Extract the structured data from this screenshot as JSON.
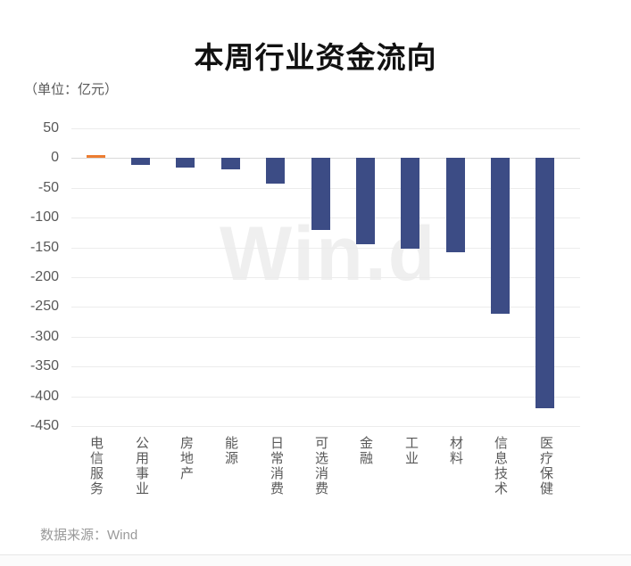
{
  "page": {
    "title": "本周行业资金流向",
    "subtitle": "（单位：亿元）",
    "source": "数据来源：Wind",
    "watermark": "Win.d"
  },
  "colors": {
    "positive_bar": "#ED7D31",
    "negative_bar": "#3C4C85",
    "gridline": "#ECECEC",
    "zero_line": "#D9D9D9",
    "axis_text": "#595959",
    "source_text": "#9A9A9A",
    "watermark": "#EFEFEF"
  },
  "chart_data": {
    "type": "bar",
    "title": "本周行业资金流向",
    "unit": "亿元",
    "categories": [
      "电信服务",
      "公用事业",
      "房地产",
      "能源",
      "日常消费",
      "可选消费",
      "金融",
      "工业",
      "材料",
      "信息技术",
      "医疗保健"
    ],
    "values": [
      5,
      -12,
      -17,
      -20,
      -43,
      -122,
      -145,
      -153,
      -158,
      -262,
      -420
    ],
    "yticks": [
      50,
      0,
      -50,
      -100,
      -150,
      -200,
      -250,
      -300,
      -350,
      -400,
      -450
    ],
    "ylim": [
      -450,
      50
    ],
    "xlabel": "",
    "ylabel": "",
    "grid": true,
    "legend": false,
    "bar_colors": {
      "positive": "#ED7D31",
      "negative": "#3C4C85"
    }
  }
}
